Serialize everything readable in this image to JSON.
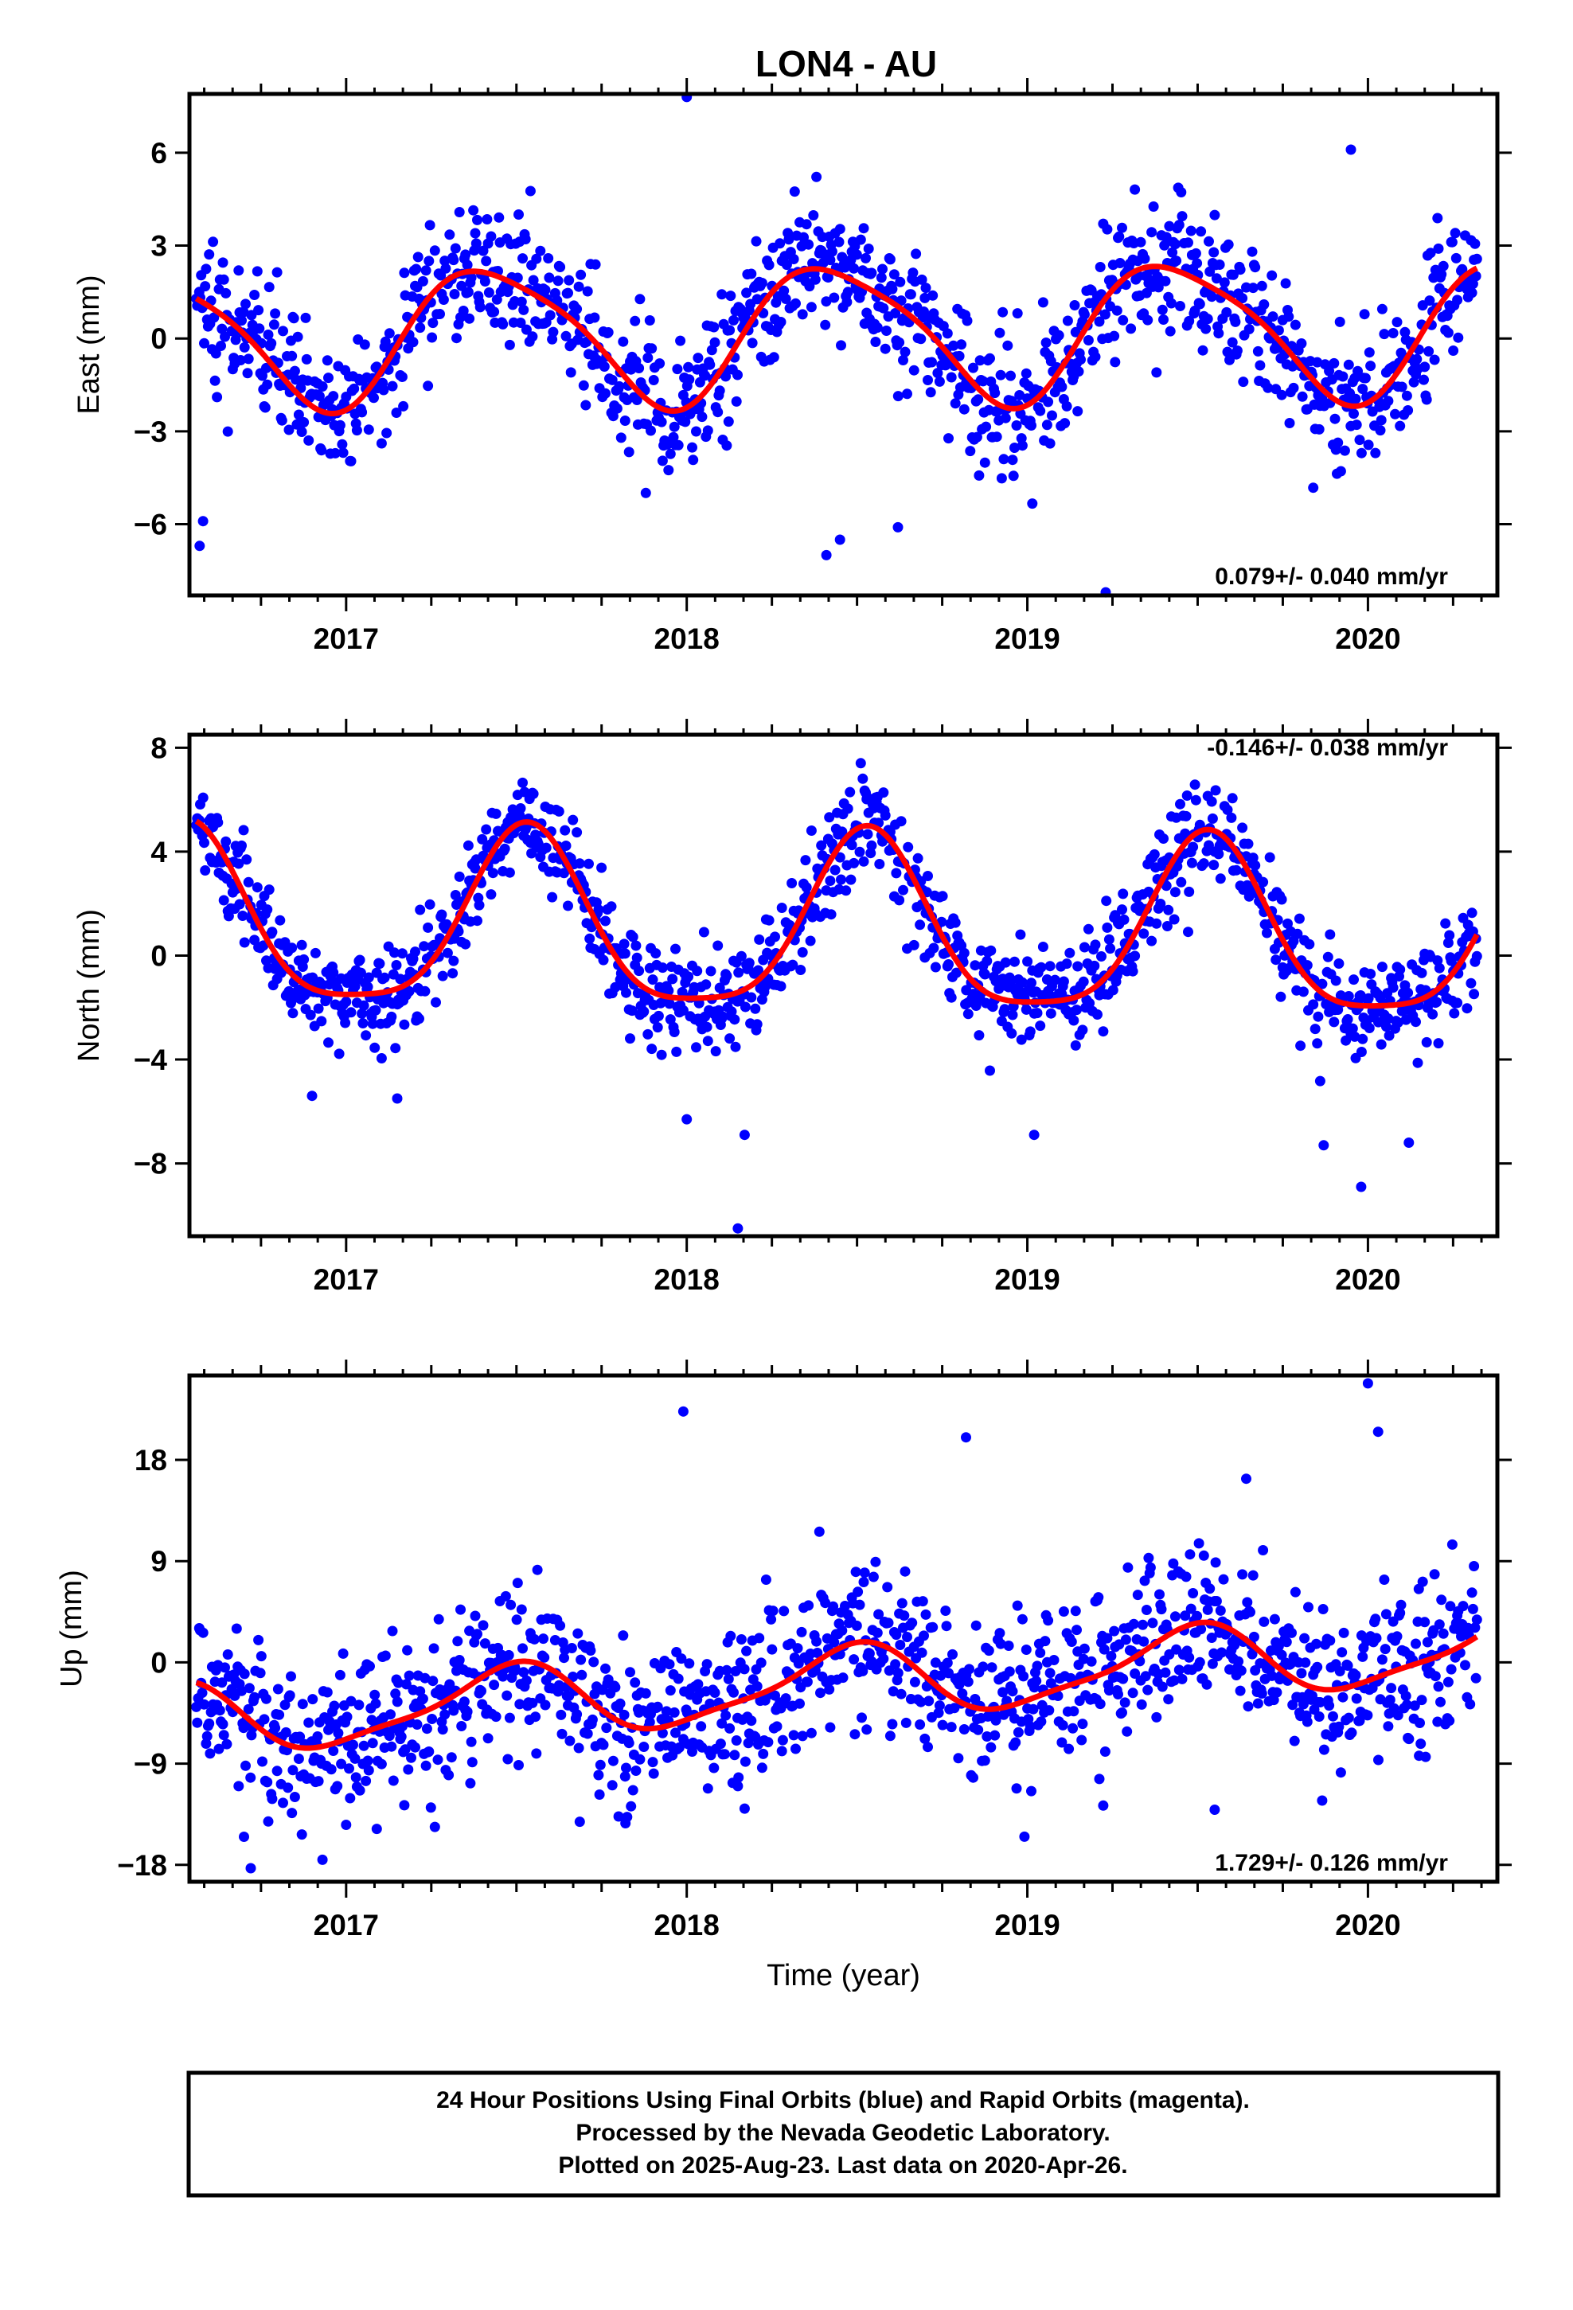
{
  "title": "LON4 - AU",
  "footer": {
    "line1": "24 Hour Positions Using Final Orbits (blue) and Rapid Orbits (magenta).",
    "line2": "Processed by the Nevada Geodetic Laboratory.",
    "line3": "Plotted on 2025-Aug-23. Last data on 2020-Apr-26."
  },
  "colors": {
    "data": "#0000ff",
    "model": "#ff0000",
    "axis": "#000000"
  },
  "chart_data": [
    {
      "type": "scatter",
      "id": "east",
      "ylabel": "East (mm)",
      "xlabel": "",
      "rate_label": "0.079+/- 0.040 mm/yr",
      "rate_position": "bottom-right",
      "xlim": [
        2016.54,
        2020.38
      ],
      "ylim": [
        -8.3,
        7.9
      ],
      "xticks": [
        2017,
        2018,
        2019,
        2020
      ],
      "xtick_labels": [
        "2017",
        "2018",
        "2019",
        "2020"
      ],
      "yticks": [
        -6,
        -3,
        0,
        3,
        6
      ],
      "ytick_labels": [
        "−6",
        "−3",
        "0",
        "3",
        "6"
      ],
      "start": 2016.56,
      "end": 2020.32,
      "trend": 0.079,
      "offset": 0.2,
      "model": {
        "annual_c": -2.0,
        "annual_s": 0.9,
        "semi_c": -0.4,
        "semi_s": 0.0
      },
      "noise_sd": 1.1,
      "series": [
        {
          "name": "Final Orbits",
          "style": "points",
          "n_points": 1300
        },
        {
          "name": "Model fit",
          "style": "line"
        }
      ],
      "outliers": [
        [
          2016.57,
          -6.7
        ],
        [
          2016.58,
          -5.9
        ],
        [
          2018.0,
          7.8
        ],
        [
          2018.41,
          -7.0
        ],
        [
          2018.45,
          -6.5
        ],
        [
          2018.62,
          -6.1
        ],
        [
          2019.23,
          -8.2
        ],
        [
          2019.95,
          6.1
        ]
      ]
    },
    {
      "type": "scatter",
      "id": "north",
      "ylabel": "North (mm)",
      "xlabel": "",
      "rate_label": "-0.146+/- 0.038 mm/yr",
      "rate_position": "top-right",
      "xlim": [
        2016.54,
        2020.38
      ],
      "ylim": [
        -10.8,
        8.5
      ],
      "xticks": [
        2017,
        2018,
        2019,
        2020
      ],
      "xtick_labels": [
        "2017",
        "2018",
        "2019",
        "2020"
      ],
      "yticks": [
        -8,
        -4,
        0,
        4,
        8
      ],
      "ytick_labels": [
        "−8",
        "−4",
        "0",
        "4",
        "8"
      ],
      "start": 2016.56,
      "end": 2020.32,
      "trend": -0.146,
      "offset": 0.9,
      "model": {
        "annual_c": -3.3,
        "annual_s": -0.6,
        "semi_c": 0.7,
        "semi_s": 0.3
      },
      "noise_sd": 1.0,
      "series": [
        {
          "name": "Final Orbits",
          "style": "points",
          "n_points": 1300
        },
        {
          "name": "Model fit",
          "style": "line"
        }
      ],
      "outliers": [
        [
          2016.9,
          -5.4
        ],
        [
          2017.15,
          -5.5
        ],
        [
          2018.0,
          -6.3
        ],
        [
          2018.15,
          -10.5
        ],
        [
          2018.17,
          -6.9
        ],
        [
          2019.02,
          -6.9
        ],
        [
          2019.87,
          -7.3
        ],
        [
          2019.98,
          -8.9
        ],
        [
          2020.12,
          -7.2
        ]
      ]
    },
    {
      "type": "scatter",
      "id": "up",
      "ylabel": "Up (mm)",
      "xlabel": "Time (year)",
      "rate_label": "1.729+/- 0.126 mm/yr",
      "rate_position": "bottom-right",
      "xlim": [
        2016.54,
        2020.38
      ],
      "ylim": [
        -19.5,
        25.5
      ],
      "xticks": [
        2017,
        2018,
        2019,
        2020
      ],
      "xtick_labels": [
        "2017",
        "2018",
        "2019",
        "2020"
      ],
      "yticks": [
        -18,
        -9,
        0,
        9,
        18
      ],
      "ytick_labels": [
        "−18",
        "−9",
        "0",
        "9",
        "18"
      ],
      "start": 2016.56,
      "end": 2020.32,
      "trend": 1.729,
      "offset": -2.0,
      "model": {
        "annual_c": -3.0,
        "annual_s": 0.5,
        "semi_c": 0.6,
        "semi_s": 0.5
      },
      "noise_sd": 3.5,
      "series": [
        {
          "name": "Final Orbits",
          "style": "points",
          "n_points": 1300
        },
        {
          "name": "Model fit",
          "style": "line"
        }
      ],
      "outliers": [
        [
          2016.7,
          -15.5
        ],
        [
          2016.72,
          -18.3
        ],
        [
          2016.87,
          -15.3
        ],
        [
          2017.09,
          -14.8
        ],
        [
          2017.8,
          -13.7
        ],
        [
          2017.82,
          -14.3
        ],
        [
          2017.99,
          22.3
        ],
        [
          2018.15,
          -11.0
        ],
        [
          2018.17,
          -13.0
        ],
        [
          2018.82,
          20.0
        ],
        [
          2019.55,
          -13.1
        ],
        [
          2020.0,
          24.8
        ],
        [
          2020.03,
          20.5
        ],
        [
          2020.15,
          -8.3
        ]
      ]
    }
  ]
}
